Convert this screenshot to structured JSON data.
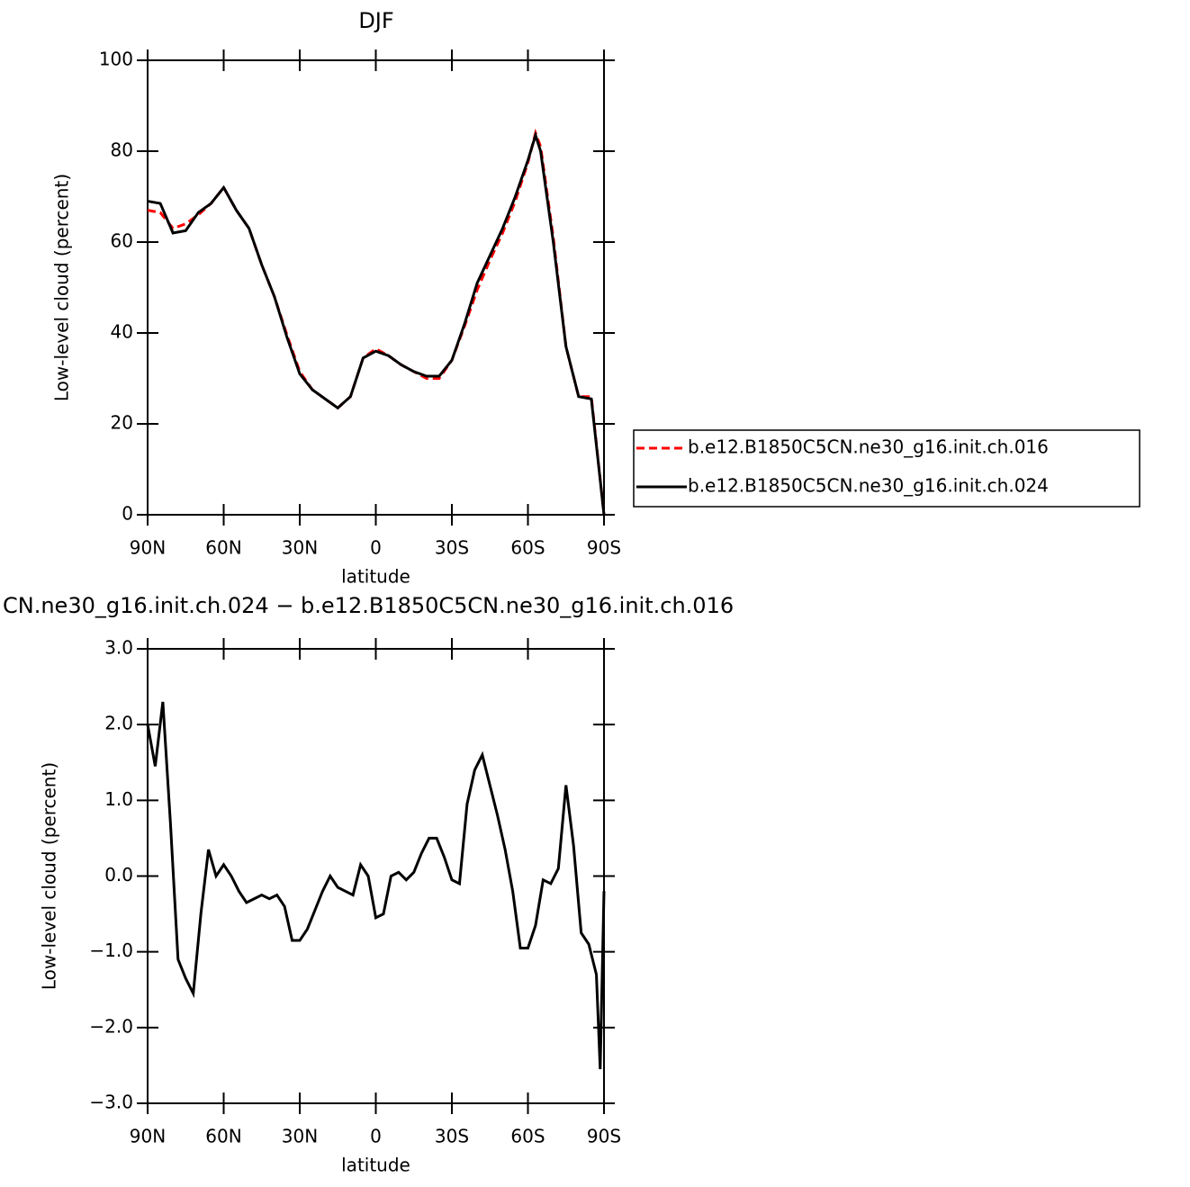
{
  "chart_data": [
    {
      "type": "line",
      "title": "DJF",
      "xlabel": "latitude",
      "ylabel": "Low-level cloud (percent)",
      "x": [
        90,
        85,
        80,
        75,
        70,
        65,
        60,
        55,
        50,
        45,
        40,
        35,
        30,
        25,
        20,
        15,
        10,
        5,
        0,
        -5,
        -10,
        -15,
        -20,
        -25,
        -30,
        -35,
        -40,
        -45,
        -50,
        -55,
        -60,
        -63,
        -65,
        -70,
        -75,
        -80,
        -85,
        -90
      ],
      "series": [
        {
          "name": "b.e12.B1850C5CN.ne30_g16.init.ch.016",
          "color": "#ff0000",
          "dash": true,
          "values": [
            67,
            66.5,
            63,
            64,
            66,
            68.5,
            72,
            67,
            63,
            55,
            48,
            39.5,
            31.5,
            27.5,
            25.5,
            23.5,
            26,
            34.5,
            36.5,
            35,
            33,
            31.5,
            30,
            30,
            34,
            41.5,
            49.5,
            56,
            62,
            69,
            77.5,
            84,
            81,
            61,
            37,
            26,
            26,
            0
          ]
        },
        {
          "name": "b.e12.B1850C5CN.ne30_g16.init.ch.024",
          "color": "#000000",
          "dash": false,
          "values": [
            69,
            68.5,
            62,
            62.5,
            66.5,
            68.5,
            72,
            67,
            63,
            55,
            48,
            39,
            31,
            27.5,
            25.5,
            23.5,
            26,
            34.5,
            36,
            35,
            33,
            31.5,
            30.5,
            30.5,
            34,
            42,
            51,
            57,
            63,
            70,
            78,
            83.5,
            80,
            60,
            37,
            26,
            25.5,
            0
          ]
        }
      ],
      "xlim": [
        90,
        -90
      ],
      "xticks": [
        {
          "value": 90,
          "label": "90N"
        },
        {
          "value": 60,
          "label": "60N"
        },
        {
          "value": 30,
          "label": "30N"
        },
        0,
        {
          "value": -30,
          "label": "30S"
        },
        {
          "value": -60,
          "label": "60S"
        },
        {
          "value": -90,
          "label": "90S"
        }
      ],
      "ylim": [
        0,
        100
      ],
      "yticks": [
        0,
        20,
        40,
        60,
        80,
        100
      ],
      "legend": "right"
    },
    {
      "type": "line",
      "title": "CN.ne30_g16.init.ch.024 − b.e12.B1850C5CN.ne30_g16.init.ch.016",
      "xlabel": "latitude",
      "ylabel": "Low-level cloud (percent)",
      "x": [
        90,
        87,
        84,
        81,
        78,
        75,
        72,
        69,
        66,
        63,
        60,
        57,
        54,
        51,
        48,
        45,
        42,
        39,
        36,
        33,
        30,
        27,
        24,
        21,
        18,
        15,
        12,
        9,
        6,
        3,
        0,
        -3,
        -6,
        -9,
        -12,
        -15,
        -18,
        -21,
        -24,
        -27,
        -30,
        -33,
        -36,
        -39,
        -42,
        -45,
        -48,
        -51,
        -54,
        -57,
        -60,
        -63,
        -66,
        -69,
        -72,
        -75,
        -78,
        -81,
        -84,
        -87,
        -88.5,
        -90
      ],
      "series": [
        {
          "color": "#000000",
          "dash": false,
          "values": [
            2.0,
            1.45,
            2.3,
            0.7,
            -1.1,
            -1.35,
            -1.55,
            -0.5,
            0.35,
            0.0,
            0.15,
            0.0,
            -0.2,
            -0.35,
            -0.3,
            -0.25,
            -0.3,
            -0.25,
            -0.4,
            -0.85,
            -0.85,
            -0.7,
            -0.45,
            -0.2,
            0.0,
            -0.15,
            -0.2,
            -0.25,
            0.15,
            0.0,
            -0.55,
            -0.5,
            0.0,
            0.05,
            -0.05,
            0.05,
            0.3,
            0.5,
            0.5,
            0.25,
            -0.05,
            -0.1,
            0.95,
            1.4,
            1.6,
            1.2,
            0.8,
            0.35,
            -0.2,
            -0.95,
            -0.95,
            -0.65,
            -0.05,
            -0.1,
            0.1,
            1.2,
            0.4,
            -0.75,
            -0.9,
            -1.3,
            -2.55,
            -0.2
          ]
        }
      ],
      "xlim": [
        90,
        -90
      ],
      "xticks": [
        {
          "value": 90,
          "label": "90N"
        },
        {
          "value": 60,
          "label": "60N"
        },
        {
          "value": 30,
          "label": "30N"
        },
        0,
        {
          "value": -30,
          "label": "30S"
        },
        {
          "value": -60,
          "label": "60S"
        },
        {
          "value": -90,
          "label": "90S"
        }
      ],
      "ylim": [
        -3,
        3
      ],
      "yticks": [
        {
          "value": -3,
          "label": "−3.0"
        },
        {
          "value": -2,
          "label": "−2.0"
        },
        {
          "value": -1,
          "label": "−1.0"
        },
        {
          "value": 0,
          "label": "0.0"
        },
        {
          "value": 1,
          "label": "1.0"
        },
        {
          "value": 2,
          "label": "2.0"
        },
        {
          "value": 3,
          "label": "3.0"
        }
      ]
    }
  ]
}
